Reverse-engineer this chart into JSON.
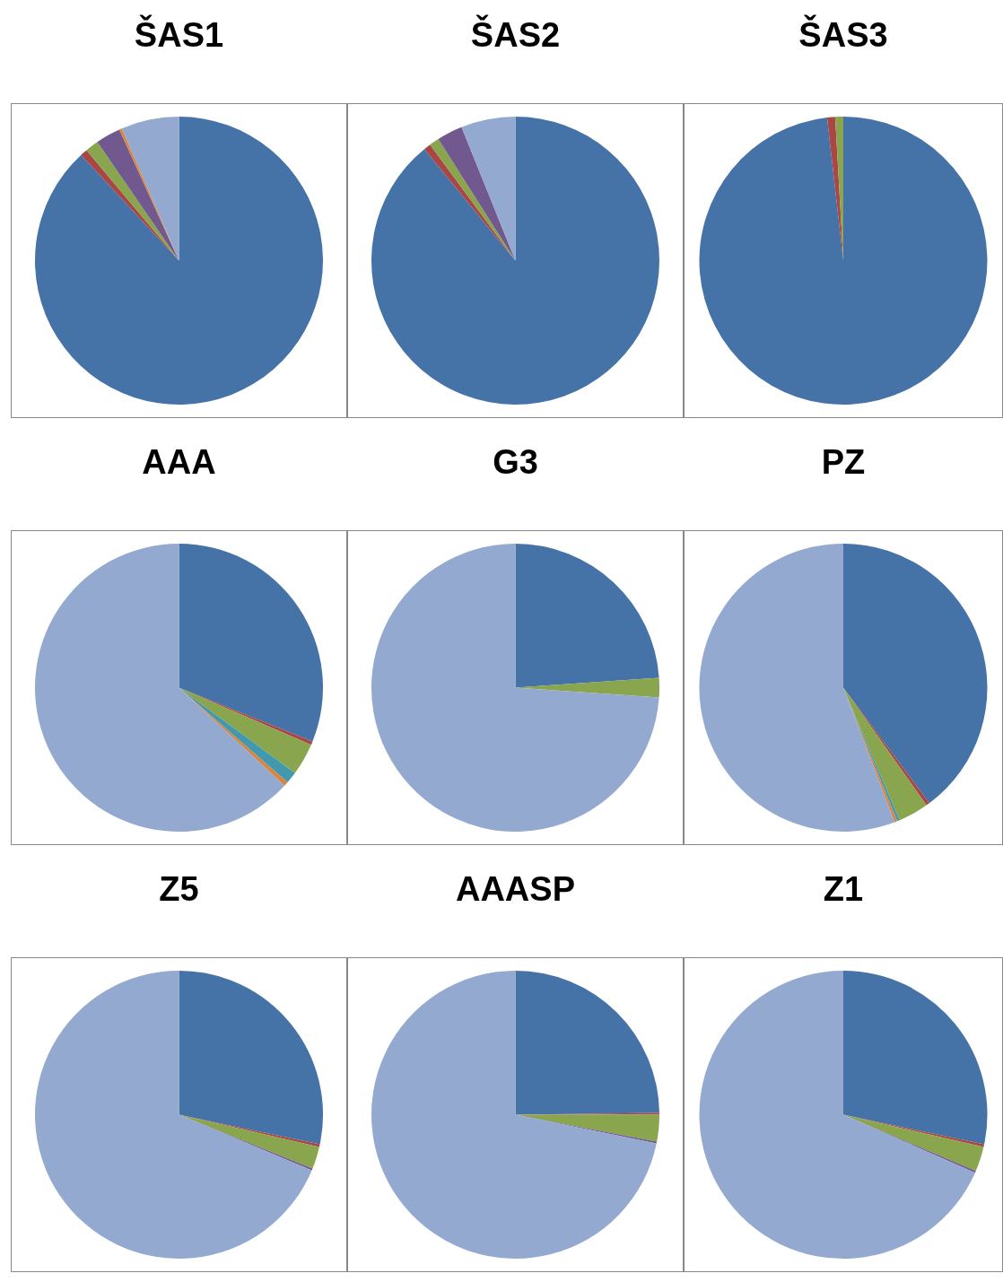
{
  "chart_data": [
    {
      "type": "pie",
      "title": "ŠAS1",
      "categories": [
        null,
        null,
        null,
        null,
        null,
        null
      ],
      "values": [
        88.1,
        0.8,
        1.5,
        2.8,
        0.3,
        6.5
      ],
      "colors": [
        "#4572a7",
        "#aa4643",
        "#89a54e",
        "#71588f",
        "#db843d",
        "#93a9cf"
      ]
    },
    {
      "type": "pie",
      "title": "ŠAS2",
      "categories": [
        null,
        null,
        null,
        null,
        null
      ],
      "values": [
        89.1,
        0.8,
        1.1,
        2.9,
        6.1
      ],
      "colors": [
        "#4572a7",
        "#aa4643",
        "#89a54e",
        "#71588f",
        "#93a9cf"
      ]
    },
    {
      "type": "pie",
      "title": "ŠAS3",
      "categories": [
        null,
        null,
        null
      ],
      "values": [
        98.2,
        0.9,
        0.9
      ],
      "colors": [
        "#4572a7",
        "#aa4643",
        "#89a54e"
      ]
    },
    {
      "type": "pie",
      "title": "AAA",
      "categories": [
        null,
        null,
        null,
        null,
        null,
        null
      ],
      "values": [
        31.1,
        0.4,
        3.6,
        1.3,
        0.5,
        63.1
      ],
      "colors": [
        "#4572a7",
        "#aa4643",
        "#89a54e",
        "#4198af",
        "#db843d",
        "#93a9cf"
      ]
    },
    {
      "type": "pie",
      "title": "G3",
      "categories": [
        null,
        null,
        null
      ],
      "values": [
        23.9,
        2.2,
        73.9
      ],
      "colors": [
        "#4572a7",
        "#89a54e",
        "#93a9cf"
      ]
    },
    {
      "type": "pie",
      "title": "PZ",
      "categories": [
        null,
        null,
        null,
        null,
        null,
        null
      ],
      "values": [
        39.8,
        0.4,
        3.4,
        0.3,
        0.3,
        55.8
      ],
      "colors": [
        "#4572a7",
        "#aa4643",
        "#89a54e",
        "#4198af",
        "#db843d",
        "#93a9cf"
      ]
    },
    {
      "type": "pie",
      "title": "Z5",
      "categories": [
        null,
        null,
        null,
        null,
        null
      ],
      "values": [
        28.3,
        0.3,
        2.5,
        0.2,
        68.7
      ],
      "colors": [
        "#4572a7",
        "#aa4643",
        "#89a54e",
        "#71588f",
        "#93a9cf"
      ]
    },
    {
      "type": "pie",
      "title": "AAASP",
      "categories": [
        null,
        null,
        null,
        null,
        null
      ],
      "values": [
        24.8,
        0.2,
        3.0,
        0.2,
        71.8
      ],
      "colors": [
        "#4572a7",
        "#aa4643",
        "#89a54e",
        "#71588f",
        "#93a9cf"
      ]
    },
    {
      "type": "pie",
      "title": "Z1",
      "categories": [
        null,
        null,
        null,
        null,
        null
      ],
      "values": [
        28.3,
        0.3,
        2.8,
        0.2,
        68.4
      ],
      "colors": [
        "#4572a7",
        "#aa4643",
        "#89a54e",
        "#71588f",
        "#93a9cf"
      ]
    }
  ]
}
